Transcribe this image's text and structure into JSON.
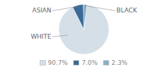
{
  "chart_data": {
    "type": "pie",
    "categories": [
      "WHITE",
      "ASIAN",
      "BLACK"
    ],
    "values": [
      90.7,
      7.0,
      2.3
    ],
    "value_labels": [
      "90.7%",
      "7.0%",
      "2.3%"
    ],
    "colors": [
      "#d4dfe8",
      "#3a6b96",
      "#8aafc4"
    ],
    "legend": "bottom"
  }
}
